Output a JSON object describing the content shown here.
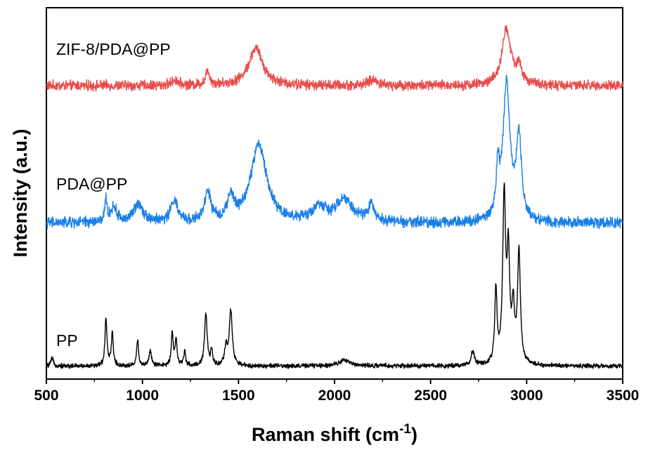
{
  "chart_data": {
    "type": "line",
    "xlabel": "Raman shift (cm",
    "xlabel_superscript": "-1",
    "xlabel_suffix": ")",
    "ylabel": "Intensity (a.u.)",
    "xlim": [
      500,
      3500
    ],
    "ylim": [
      0,
      100
    ],
    "xticks": [
      500,
      1000,
      1500,
      2000,
      2500,
      3000,
      3500
    ],
    "ytick_labels_shown": false,
    "grid": false,
    "series": [
      {
        "name": "ZIF-8/PDA@PP",
        "color": "#e84c4c",
        "baseline": 79,
        "noise": 1.1,
        "peaks": [
          {
            "x": 1340,
            "height": 4,
            "width": 12
          },
          {
            "x": 1590,
            "height": 10,
            "width": 45
          },
          {
            "x": 1170,
            "height": 1.5,
            "width": 20
          },
          {
            "x": 2200,
            "height": 1.5,
            "width": 30
          },
          {
            "x": 2895,
            "height": 15,
            "width": 28
          },
          {
            "x": 2960,
            "height": 5,
            "width": 15
          }
        ]
      },
      {
        "name": "PDA@PP",
        "color": "#1a7fe8",
        "baseline": 42,
        "noise": 1.2,
        "peaks": [
          {
            "x": 810,
            "height": 6,
            "width": 6
          },
          {
            "x": 850,
            "height": 4,
            "width": 20
          },
          {
            "x": 980,
            "height": 5,
            "width": 30
          },
          {
            "x": 1165,
            "height": 6,
            "width": 20
          },
          {
            "x": 1340,
            "height": 8,
            "width": 18
          },
          {
            "x": 1460,
            "height": 6,
            "width": 20
          },
          {
            "x": 1605,
            "height": 21,
            "width": 50
          },
          {
            "x": 1920,
            "height": 4,
            "width": 40
          },
          {
            "x": 2050,
            "height": 6,
            "width": 50
          },
          {
            "x": 2190,
            "height": 4,
            "width": 25
          },
          {
            "x": 2850,
            "height": 12,
            "width": 10
          },
          {
            "x": 2895,
            "height": 37,
            "width": 22
          },
          {
            "x": 2960,
            "height": 22,
            "width": 16
          }
        ]
      },
      {
        "name": "PP",
        "color": "#000000",
        "baseline": 3.5,
        "noise": 0.5,
        "peaks": [
          {
            "x": 530,
            "height": 2,
            "width": 8
          },
          {
            "x": 810,
            "height": 13,
            "width": 6
          },
          {
            "x": 843,
            "height": 9,
            "width": 6
          },
          {
            "x": 975,
            "height": 7,
            "width": 6
          },
          {
            "x": 1040,
            "height": 4,
            "width": 8
          },
          {
            "x": 1155,
            "height": 9,
            "width": 6
          },
          {
            "x": 1175,
            "height": 7,
            "width": 6
          },
          {
            "x": 1220,
            "height": 4,
            "width": 6
          },
          {
            "x": 1330,
            "height": 14,
            "width": 8
          },
          {
            "x": 1360,
            "height": 4,
            "width": 6
          },
          {
            "x": 1435,
            "height": 5,
            "width": 8
          },
          {
            "x": 1460,
            "height": 15,
            "width": 9
          },
          {
            "x": 2050,
            "height": 1.5,
            "width": 40
          },
          {
            "x": 2720,
            "height": 4,
            "width": 10
          },
          {
            "x": 2840,
            "height": 20,
            "width": 7
          },
          {
            "x": 2883,
            "height": 45,
            "width": 9
          },
          {
            "x": 2905,
            "height": 28,
            "width": 8
          },
          {
            "x": 2930,
            "height": 14,
            "width": 8
          },
          {
            "x": 2960,
            "height": 30,
            "width": 9
          }
        ]
      }
    ]
  }
}
